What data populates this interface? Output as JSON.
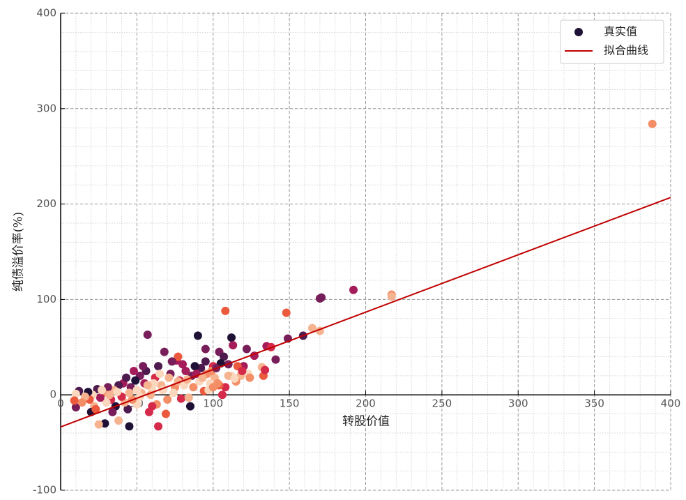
{
  "chart_data": {
    "type": "scatter",
    "xlabel": "转股价值",
    "ylabel": "纯债溢价率(%)",
    "xlim": [
      0,
      400
    ],
    "ylim": [
      -100,
      400
    ],
    "xticks": [
      0,
      50,
      100,
      150,
      200,
      250,
      300,
      350,
      400
    ],
    "yticks": [
      -100,
      0,
      100,
      200,
      300,
      400
    ],
    "grid": true,
    "minor_grid": {
      "x": 10,
      "y": 20
    },
    "legend": "upper right",
    "series": [
      {
        "name": "真实值",
        "type": "scatter",
        "color": "#1f1135",
        "x": [
          388,
          217,
          217,
          192,
          171,
          170,
          148,
          108,
          165,
          170,
          159,
          149,
          90,
          112,
          57,
          10,
          29,
          45,
          64,
          25,
          38,
          141,
          135,
          138,
          132,
          133,
          134,
          122,
          127,
          120,
          113,
          104,
          107,
          110,
          95,
          105,
          100,
          116,
          118,
          123,
          115,
          112,
          108,
          106,
          104,
          101,
          98,
          96,
          94,
          92,
          88,
          85,
          86,
          82,
          80,
          78,
          76,
          75,
          72,
          70,
          68,
          66,
          64,
          62,
          60,
          58,
          56,
          55,
          53,
          52,
          50,
          49,
          47,
          46,
          44,
          42,
          41,
          40,
          38,
          36,
          35,
          33,
          31,
          30,
          28,
          26,
          24,
          22,
          21,
          19,
          18,
          16,
          14,
          12,
          10,
          9,
          20,
          23,
          34,
          43,
          48,
          54,
          59,
          61,
          63,
          67,
          71,
          74,
          77,
          79,
          81,
          83,
          87,
          89,
          91,
          93,
          97,
          99,
          102,
          103,
          110,
          114,
          119,
          124,
          77,
          65,
          57,
          50,
          45,
          37,
          32,
          27,
          52,
          60,
          69,
          73,
          84,
          95,
          100
        ],
        "values": [
          284,
          105,
          103,
          110,
          102,
          101,
          86,
          88,
          70,
          67,
          62,
          59,
          62,
          60,
          63,
          -13,
          -30,
          -33,
          -33,
          -31,
          -27,
          37,
          51,
          50,
          29,
          20,
          26,
          48,
          41,
          30,
          52,
          45,
          40,
          32,
          48,
          33,
          30,
          30,
          20,
          22,
          14,
          20,
          8,
          0,
          10,
          18,
          12,
          22,
          4,
          28,
          30,
          -12,
          20,
          25,
          32,
          15,
          36,
          8,
          22,
          -5,
          45,
          10,
          30,
          18,
          5,
          -18,
          25,
          12,
          2,
          20,
          -10,
          15,
          -5,
          8,
          -15,
          -8,
          12,
          -2,
          10,
          -12,
          5,
          -5,
          8,
          -8,
          2,
          -3,
          6,
          -12,
          0,
          -5,
          3,
          -2,
          -8,
          4,
          1,
          -6,
          -18,
          -15,
          -18,
          18,
          25,
          30,
          0,
          12,
          -10,
          5,
          18,
          2,
          14,
          -4,
          10,
          16,
          8,
          22,
          14,
          18,
          5,
          25,
          28,
          12,
          20,
          17,
          25,
          18,
          40,
          22,
          10,
          5,
          2,
          3,
          0,
          5,
          -2,
          -12,
          -20,
          35,
          -3,
          35,
          8
        ],
        "colors": [
          "#f38e66",
          "#f38e66",
          "#f6b38f",
          "#a51c5a",
          "#771e5a",
          "#771e5a",
          "#ec5a3e",
          "#ec5a3e",
          "#f6b38f",
          "#f6b38f",
          "#4e1b4e",
          "#771e5a",
          "#1f1135",
          "#1f1135",
          "#771e5a",
          "#771e5a",
          "#1f1135",
          "#1f1135",
          "#d52a4a",
          "#f6b38f",
          "#f6b38f",
          "#771e5a",
          "#a51c5a",
          "#d52a4a",
          "#f6b38f",
          "#ec5a3e",
          "#d52a4a",
          "#771e5a",
          "#a51c5a",
          "#a51c5a",
          "#a51c5a",
          "#771e5a",
          "#4e1b4e",
          "#771e5a",
          "#771e5a",
          "#1f1135",
          "#d52a4a",
          "#ec5a3e",
          "#f6b38f",
          "#fbd7bd",
          "#f38e66",
          "#fbd7bd",
          "#d52a4a",
          "#d52a4a",
          "#ec5a3e",
          "#f6b38f",
          "#fbd7bd",
          "#f38e66",
          "#ec5a3e",
          "#4e1b4e",
          "#1f1135",
          "#1f1135",
          "#771e5a",
          "#a51c5a",
          "#a51c5a",
          "#d52a4a",
          "#a51c5a",
          "#f38e66",
          "#771e5a",
          "#f38e66",
          "#771e5a",
          "#f6b38f",
          "#4e1b4e",
          "#d52a4a",
          "#fbd7bd",
          "#d52a4a",
          "#4e1b4e",
          "#a51c5a",
          "#f6b38f",
          "#771e5a",
          "#fbd7bd",
          "#1f1135",
          "#f38e66",
          "#771e5a",
          "#4e1b4e",
          "#f6b38f",
          "#a51c5a",
          "#d52a4a",
          "#4e1b4e",
          "#1f1135",
          "#f6b38f",
          "#d52a4a",
          "#771e5a",
          "#fbd7bd",
          "#f38e66",
          "#a51c5a",
          "#4e1b4e",
          "#f6b38f",
          "#fbd7bd",
          "#ec5a3e",
          "#1f1135",
          "#f6b38f",
          "#f38e66",
          "#4e1b4e",
          "#fbd7bd",
          "#ec5a3e",
          "#1f1135",
          "#ec5a3e",
          "#771e5a",
          "#4e1b4e",
          "#a51c5a",
          "#771e5a",
          "#f6b38f",
          "#fbd7bd",
          "#f38e66",
          "#fbd7bd",
          "#f6b38f",
          "#fbd7bd",
          "#f6b38f",
          "#d52a4a",
          "#fbd7bd",
          "#f6b38f",
          "#f38e66",
          "#a51c5a",
          "#fbd7bd",
          "#f6b38f",
          "#fbd7bd",
          "#f38e66",
          "#771e5a",
          "#f38e66",
          "#f6b38f",
          "#fbd7bd",
          "#d52a4a",
          "#f38e66",
          "#ec5a3e",
          "#fbd7bd",
          "#f6b38f",
          "#fbd7bd",
          "#f6b38f",
          "#fbd7bd",
          "#f6b38f",
          "#fbd7bd",
          "#fbd7bd",
          "#d52a4a",
          "#ec5a3e",
          "#771e5a",
          "#f6b38f",
          "#4e1b4e",
          "#f38e66"
        ]
      },
      {
        "name": "拟合曲线",
        "type": "line",
        "color": "#c00000",
        "x": [
          0,
          400
        ],
        "values": [
          -33.6,
          206.9
        ]
      }
    ]
  }
}
